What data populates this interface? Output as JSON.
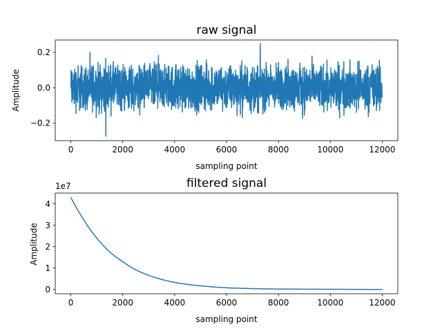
{
  "chart_data": [
    {
      "type": "line",
      "title": "raw signal",
      "xlabel": "sampling point",
      "ylabel": "Amplitude",
      "xlim": [
        -600,
        12600
      ],
      "ylim": [
        -0.3,
        0.27
      ],
      "xticks": [
        0,
        2000,
        4000,
        6000,
        8000,
        10000,
        12000
      ],
      "xtick_labels": [
        "0",
        "2000",
        "4000",
        "6000",
        "8000",
        "10000",
        "12000"
      ],
      "yticks": [
        -0.2,
        0.0,
        0.2
      ],
      "ytick_labels": [
        "−0.2",
        "0.0",
        "0.2"
      ],
      "grid": false,
      "series": [
        {
          "color": "#1f77b4",
          "x_range": [
            0,
            12000
          ],
          "n_points": 12000,
          "envelope_approx": {
            "typical_min": -0.19,
            "typical_max": 0.19,
            "extreme_min": -0.275,
            "extreme_min_x": 1350,
            "extreme_max": 0.25,
            "extreme_max_x": 7300
          }
        }
      ]
    },
    {
      "type": "line",
      "title": "filtered signal",
      "xlabel": "sampling point",
      "ylabel": "Amplitude",
      "offset_text": "1e7",
      "xlim": [
        -600,
        12600
      ],
      "ylim": [
        -0.2,
        4.5
      ],
      "xticks": [
        0,
        2000,
        4000,
        6000,
        8000,
        10000,
        12000
      ],
      "xtick_labels": [
        "0",
        "2000",
        "4000",
        "6000",
        "8000",
        "10000",
        "12000"
      ],
      "yticks": [
        0,
        1,
        2,
        3,
        4
      ],
      "ytick_labels": [
        "0",
        "1",
        "2",
        "3",
        "4"
      ],
      "grid": false,
      "series": [
        {
          "color": "#1f77b4",
          "x": [
            0,
            500,
            1000,
            1500,
            2000,
            2500,
            3000,
            3500,
            4000,
            5000,
            6000,
            7000,
            8000,
            10000,
            12000
          ],
          "y": [
            4.3,
            3.25,
            2.4,
            1.75,
            1.3,
            0.92,
            0.66,
            0.47,
            0.33,
            0.17,
            0.08,
            0.04,
            0.02,
            0.01,
            0.0
          ]
        }
      ]
    }
  ]
}
